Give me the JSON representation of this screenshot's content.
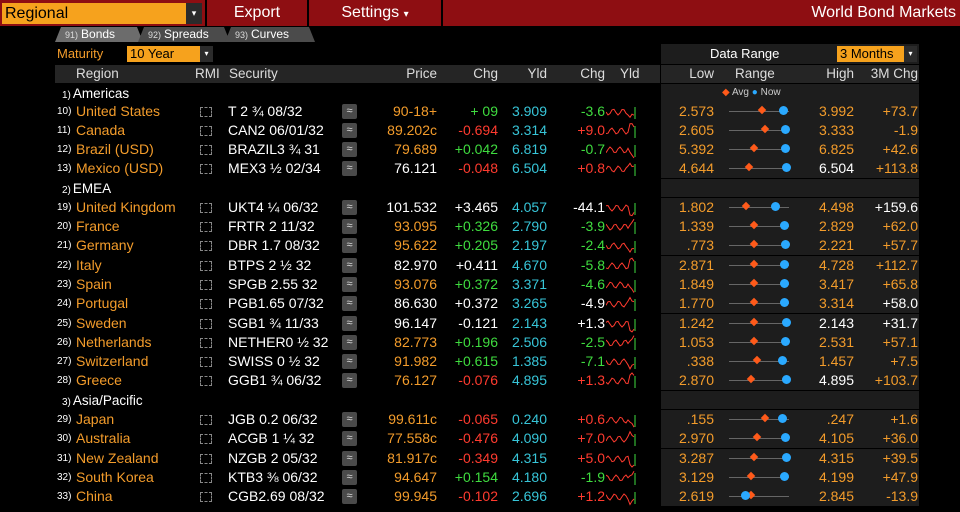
{
  "topbar": {
    "selector": "Regional",
    "export": "Export",
    "settings": "Settings",
    "settings_arrow": "▾",
    "arrow": "▾",
    "title": "World Bond Markets"
  },
  "tabs": [
    {
      "num": "91)",
      "label": "Bonds"
    },
    {
      "num": "92)",
      "label": "Spreads"
    },
    {
      "num": "93)",
      "label": "Curves"
    }
  ],
  "maturity": {
    "label": "Maturity",
    "value": "10 Year"
  },
  "data_range": {
    "label": "Data Range",
    "value": "3 Months"
  },
  "headers": {
    "region": "Region",
    "rmi": "RMI",
    "security": "Security",
    "price": "Price",
    "chg": "Chg",
    "yld": "Yld",
    "ychg": "Chg",
    "yld2": "Yld",
    "low": "Low",
    "range": "Range",
    "high": "High",
    "m3": "3M Chg"
  },
  "legend": {
    "avg": "Avg",
    "now": "Now"
  },
  "colors": {
    "accent": "#f6a21d",
    "topbar": "#8e0e12",
    "positive": "#3fdc3f",
    "negative": "#ff3b2f",
    "yield": "#37c5d8"
  },
  "groups": [
    {
      "num": "1)",
      "label": "Americas"
    },
    {
      "num": "2)",
      "label": "EMEA"
    },
    {
      "num": "3)",
      "label": "Asia/Pacific"
    }
  ],
  "rows": [
    {
      "num": "10)",
      "country": "United States",
      "sec": "T 2 ¾ 08/32",
      "price": "90-18+",
      "chg": "+ 09",
      "yld": "3.909",
      "ychg": "-3.6",
      "low": "2.573",
      "high": "3.992",
      "m3": "+73.7",
      "avg": 0.55,
      "now": 0.95,
      "pc": "orange",
      "cc": "green",
      "yc": "green",
      "hc": "orange",
      "mc": "orange"
    },
    {
      "num": "11)",
      "country": "Canada",
      "sec": "CAN2 06/01/32",
      "price": "89.202c",
      "chg": "-0.694",
      "yld": "3.314",
      "ychg": "+9.0",
      "low": "2.605",
      "high": "3.333",
      "m3": "-1.9",
      "avg": 0.6,
      "now": 0.98,
      "pc": "orange",
      "cc": "red",
      "yc": "red",
      "hc": "orange",
      "mc": "orange"
    },
    {
      "num": "12)",
      "country": "Brazil (USD)",
      "sec": "BRAZIL3 ¾ 31",
      "price": "79.689",
      "chg": "+0.042",
      "yld": "6.819",
      "ychg": "-0.7",
      "low": "5.392",
      "high": "6.825",
      "m3": "+42.6",
      "avg": 0.4,
      "now": 0.99,
      "pc": "orange",
      "cc": "green",
      "yc": "green",
      "hc": "orange",
      "mc": "orange"
    },
    {
      "num": "13)",
      "country": "Mexico (USD)",
      "sec": "MEX3 ½ 02/34",
      "price": "76.121",
      "chg": "-0.048",
      "yld": "6.504",
      "ychg": "+0.8",
      "low": "4.644",
      "high": "6.504",
      "m3": "+113.8",
      "avg": 0.3,
      "now": 1.0,
      "pc": "white",
      "cc": "red",
      "yc": "red",
      "hc": "white",
      "mc": "orange"
    },
    {
      "num": "19)",
      "country": "United Kingdom",
      "sec": "UKT4 ¼ 06/32",
      "price": "101.532",
      "chg": "+3.465",
      "yld": "4.057",
      "ychg": "-44.1",
      "low": "1.802",
      "high": "4.498",
      "m3": "+159.6",
      "avg": 0.25,
      "now": 0.8,
      "pc": "white",
      "cc": "white",
      "yc": "white",
      "hc": "orange",
      "mc": "white"
    },
    {
      "num": "20)",
      "country": "France",
      "sec": "FRTR 2 11/32",
      "price": "93.095",
      "chg": "+0.326",
      "yld": "2.790",
      "ychg": "-3.9",
      "low": "1.339",
      "high": "2.829",
      "m3": "+62.0",
      "avg": 0.4,
      "now": 0.97,
      "pc": "orange",
      "cc": "green",
      "yc": "green",
      "hc": "orange",
      "mc": "orange"
    },
    {
      "num": "21)",
      "country": "Germany",
      "sec": "DBR 1.7 08/32",
      "price": "95.622",
      "chg": "+0.205",
      "yld": "2.197",
      "ychg": "-2.4",
      "low": ".773",
      "high": "2.221",
      "m3": "+57.7",
      "avg": 0.4,
      "now": 0.98,
      "pc": "orange",
      "cc": "green",
      "yc": "green",
      "hc": "orange",
      "mc": "orange"
    },
    {
      "num": "22)",
      "country": "Italy",
      "sec": "BTPS 2 ½ 32",
      "price": "82.970",
      "chg": "+0.411",
      "yld": "4.670",
      "ychg": "-5.8",
      "low": "2.871",
      "high": "4.728",
      "m3": "+112.7",
      "avg": 0.4,
      "now": 0.97,
      "pc": "white",
      "cc": "white",
      "yc": "green",
      "hc": "orange",
      "mc": "orange"
    },
    {
      "num": "23)",
      "country": "Spain",
      "sec": "SPGB 2.55 32",
      "price": "93.076",
      "chg": "+0.372",
      "yld": "3.371",
      "ychg": "-4.6",
      "low": "1.849",
      "high": "3.417",
      "m3": "+65.8",
      "avg": 0.4,
      "now": 0.97,
      "pc": "orange",
      "cc": "green",
      "yc": "green",
      "hc": "orange",
      "mc": "orange"
    },
    {
      "num": "24)",
      "country": "Portugal",
      "sec": "PGB1.65 07/32",
      "price": "86.630",
      "chg": "+0.372",
      "yld": "3.265",
      "ychg": "-4.9",
      "low": "1.770",
      "high": "3.314",
      "m3": "+58.0",
      "avg": 0.4,
      "now": 0.97,
      "pc": "white",
      "cc": "white",
      "yc": "white",
      "hc": "orange",
      "mc": "white"
    },
    {
      "num": "25)",
      "country": "Sweden",
      "sec": "SGB1 ¾ 11/33",
      "price": "96.147",
      "chg": "-0.121",
      "yld": "2.143",
      "ychg": "+1.3",
      "low": "1.242",
      "high": "2.143",
      "m3": "+31.7",
      "avg": 0.4,
      "now": 1.0,
      "pc": "white",
      "cc": "white",
      "yc": "white",
      "hc": "white",
      "mc": "white"
    },
    {
      "num": "26)",
      "country": "Netherlands",
      "sec": "NETHER0 ½ 32",
      "price": "82.773",
      "chg": "+0.196",
      "yld": "2.506",
      "ychg": "-2.5",
      "low": "1.053",
      "high": "2.531",
      "m3": "+57.1",
      "avg": 0.4,
      "now": 0.98,
      "pc": "orange",
      "cc": "green",
      "yc": "green",
      "hc": "orange",
      "mc": "orange"
    },
    {
      "num": "27)",
      "country": "Switzerland",
      "sec": "SWISS 0 ½ 32",
      "price": "91.982",
      "chg": "+0.615",
      "yld": "1.385",
      "ychg": "-7.1",
      "low": ".338",
      "high": "1.457",
      "m3": "+7.5",
      "avg": 0.45,
      "now": 0.93,
      "pc": "orange",
      "cc": "green",
      "yc": "green",
      "hc": "orange",
      "mc": "orange"
    },
    {
      "num": "28)",
      "country": "Greece",
      "sec": "GGB1 ¾ 06/32",
      "price": "76.127",
      "chg": "-0.076",
      "yld": "4.895",
      "ychg": "+1.3",
      "low": "2.870",
      "high": "4.895",
      "m3": "+103.7",
      "avg": 0.35,
      "now": 1.0,
      "pc": "orange",
      "cc": "red",
      "yc": "red",
      "hc": "white",
      "mc": "orange"
    },
    {
      "num": "29)",
      "country": "Japan",
      "sec": "JGB 0.2 06/32",
      "price": "99.611c",
      "chg": "-0.065",
      "yld": "0.240",
      "ychg": "+0.6",
      "low": ".155",
      "high": ".247",
      "m3": "+1.6",
      "avg": 0.6,
      "now": 0.92,
      "pc": "orange",
      "cc": "red",
      "yc": "red",
      "hc": "orange",
      "mc": "orange"
    },
    {
      "num": "30)",
      "country": "Australia",
      "sec": "ACGB 1 ¼ 32",
      "price": "77.558c",
      "chg": "-0.476",
      "yld": "4.090",
      "ychg": "+7.0",
      "low": "2.970",
      "high": "4.105",
      "m3": "+36.0",
      "avg": 0.45,
      "now": 0.98,
      "pc": "orange",
      "cc": "red",
      "yc": "red",
      "hc": "orange",
      "mc": "orange"
    },
    {
      "num": "31)",
      "country": "New Zealand",
      "sec": "NZGB 2 05/32",
      "price": "81.917c",
      "chg": "-0.349",
      "yld": "4.315",
      "ychg": "+5.0",
      "low": "3.287",
      "high": "4.315",
      "m3": "+39.5",
      "avg": 0.4,
      "now": 1.0,
      "pc": "orange",
      "cc": "red",
      "yc": "red",
      "hc": "orange",
      "mc": "orange"
    },
    {
      "num": "32)",
      "country": "South Korea",
      "sec": "KTB3 ⅜ 06/32",
      "price": "94.647",
      "chg": "+0.154",
      "yld": "4.180",
      "ychg": "-1.9",
      "low": "3.129",
      "high": "4.199",
      "m3": "+47.9",
      "avg": 0.35,
      "now": 0.97,
      "pc": "orange",
      "cc": "green",
      "yc": "green",
      "hc": "orange",
      "mc": "orange"
    },
    {
      "num": "33)",
      "country": "China",
      "sec": "CGB2.69 08/32",
      "price": "99.945",
      "chg": "-0.102",
      "yld": "2.696",
      "ychg": "+1.2",
      "low": "2.619",
      "high": "2.845",
      "m3": "-13.9",
      "avg": 0.35,
      "now": 0.25,
      "pc": "orange",
      "cc": "red",
      "yc": "red",
      "hc": "orange",
      "mc": "orange"
    }
  ]
}
